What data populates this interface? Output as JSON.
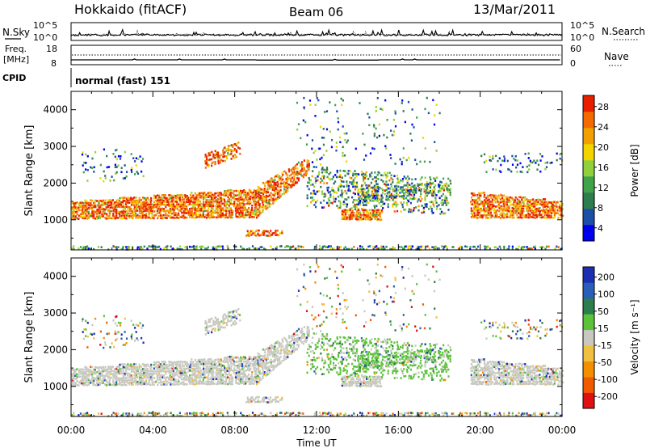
{
  "header": {
    "station": "Hokkaido (fitACF)",
    "beam": "Beam 06",
    "date": "13/Mar/2011"
  },
  "top_panels": {
    "nsky_label": "N.Sky",
    "nsearch_label": "N.Search",
    "freq_label_1": "Freq.",
    "freq_label_2": "[MHz]",
    "nave_label": "Nave",
    "cpid_label": "CPID",
    "cpid_value": "normal (fast) 151",
    "noise_ticks": [
      "10^5",
      "10^0"
    ],
    "freq_ticks": [
      "18",
      "8"
    ],
    "nave_ticks": [
      "60",
      "0"
    ]
  },
  "chart_data": [
    {
      "type": "heatmap",
      "panel": "power",
      "ylabel": "Slant Range [km]",
      "xlabel": "",
      "x_range_hours": [
        0,
        24
      ],
      "ylim": [
        180,
        4500
      ],
      "yticks": [
        "1000",
        "2000",
        "3000",
        "4000"
      ],
      "colorbar_label": "Power [dB]",
      "colorbar_ticks": [
        "28",
        "24",
        "20",
        "16",
        "12",
        "8",
        "4"
      ],
      "colors": [
        "#0000ee",
        "#1d4ea8",
        "#2e7d4f",
        "#3fa34a",
        "#8fd13a",
        "#f2d400",
        "#f2a000",
        "#f26a00",
        "#e82000"
      ],
      "features": [
        {
          "start_h": 0.0,
          "end_h": 9.0,
          "range_km": [
            1000,
            1600
          ],
          "level": "high"
        },
        {
          "start_h": 9.0,
          "end_h": 11.6,
          "range_km": [
            1350,
            2700
          ],
          "level": "high"
        },
        {
          "start_h": 11.5,
          "end_h": 18.5,
          "range_km": [
            1000,
            2450
          ],
          "level": "mixed"
        },
        {
          "start_h": 13.2,
          "end_h": 15.2,
          "range_km": [
            1000,
            1250
          ],
          "level": "high"
        },
        {
          "start_h": 19.5,
          "end_h": 24.0,
          "range_km": [
            1000,
            1850
          ],
          "level": "high"
        },
        {
          "start_h": 0.0,
          "end_h": 24.0,
          "range_km": [
            180,
            320
          ],
          "level": "mixed"
        }
      ]
    },
    {
      "type": "heatmap",
      "panel": "velocity",
      "ylabel": "Slant Range [km]",
      "xlabel": "Time UT",
      "x_range_hours": [
        0,
        24
      ],
      "ylim": [
        180,
        4500
      ],
      "yticks": [
        "1000",
        "2000",
        "3000",
        "4000"
      ],
      "colorbar_label": "Velocity [m s⁻¹]",
      "colorbar_ticks": [
        "200",
        "100",
        "50",
        "15",
        "-15",
        "-50",
        "-100",
        "-200"
      ],
      "colors": [
        "#1c2fb0",
        "#2a5fb8",
        "#2e7d4f",
        "#5cc23a",
        "#c8c8c0",
        "#f2c040",
        "#f29000",
        "#f25a00",
        "#e01010"
      ],
      "features": [
        {
          "start_h": 0.0,
          "end_h": 9.0,
          "range_km": [
            1000,
            1600
          ],
          "velocity": "near-zero"
        },
        {
          "start_h": 9.0,
          "end_h": 11.6,
          "range_km": [
            1350,
            2700
          ],
          "velocity": "near-zero"
        },
        {
          "start_h": 14.0,
          "end_h": 18.5,
          "range_km": [
            1300,
            1900
          ],
          "velocity": "positive"
        },
        {
          "start_h": 19.5,
          "end_h": 24.0,
          "range_km": [
            1000,
            1850
          ],
          "velocity": "near-zero"
        }
      ]
    }
  ],
  "x_axis": {
    "ticks": [
      "00:00",
      "04:00",
      "08:00",
      "12:00",
      "16:00",
      "20:00",
      "00:00"
    ],
    "label": "Time UT"
  }
}
